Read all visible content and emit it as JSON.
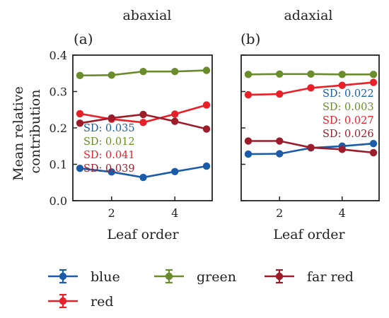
{
  "chart_data": [
    {
      "type": "line",
      "title": "abaxial",
      "panel_label": "(a)",
      "xlabel": "Leaf order",
      "ylabel": "Mean relative contribution",
      "xlim": [
        1,
        5
      ],
      "ylim": [
        0.0,
        0.4
      ],
      "xticks": [
        2,
        4
      ],
      "yticks": [
        0.0,
        0.1,
        0.2,
        0.3,
        0.4
      ],
      "ytick_labels": [
        "0.0",
        "0.1",
        "0.2",
        "0.3",
        "0.4"
      ],
      "x": [
        1,
        2,
        3,
        4,
        5
      ],
      "series": [
        {
          "name": "blue",
          "color": "#1a5ca8",
          "values": [
            0.089,
            0.079,
            0.064,
            0.08,
            0.095
          ],
          "sd": "SD: 0.035"
        },
        {
          "name": "green",
          "color": "#6a8c2a",
          "values": [
            0.344,
            0.345,
            0.355,
            0.355,
            0.358
          ],
          "sd": "SD: 0.012"
        },
        {
          "name": "red",
          "color": "#e8202a",
          "values": [
            0.239,
            0.224,
            0.215,
            0.238,
            0.263
          ],
          "sd": "SD: 0.041"
        },
        {
          "name": "far red",
          "color": "#9c1c2a",
          "values": [
            0.213,
            0.227,
            0.237,
            0.218,
            0.197
          ],
          "sd": "SD: 0.039"
        }
      ]
    },
    {
      "type": "line",
      "title": "adaxial",
      "panel_label": "(b)",
      "xlabel": "Leaf order",
      "xlim": [
        1,
        5
      ],
      "ylim": [
        0.0,
        0.4
      ],
      "xticks": [
        2,
        4
      ],
      "yticks": [
        0.0,
        0.1,
        0.2,
        0.3,
        0.4
      ],
      "ytick_labels": [],
      "x": [
        1,
        2,
        3,
        4,
        5
      ],
      "series": [
        {
          "name": "blue",
          "color": "#1a5ca8",
          "values": [
            0.128,
            0.129,
            0.145,
            0.15,
            0.157
          ],
          "sd": "SD: 0.022"
        },
        {
          "name": "green",
          "color": "#6a8c2a",
          "values": [
            0.347,
            0.348,
            0.348,
            0.347,
            0.347
          ],
          "sd": "SD: 0.003"
        },
        {
          "name": "red",
          "color": "#e8202a",
          "values": [
            0.291,
            0.293,
            0.31,
            0.317,
            0.325
          ],
          "sd": "SD: 0.027"
        },
        {
          "name": "far red",
          "color": "#9c1c2a",
          "values": [
            0.164,
            0.164,
            0.146,
            0.141,
            0.132
          ],
          "sd": "SD: 0.026"
        }
      ]
    }
  ],
  "legend": {
    "placement": "bottom",
    "items": [
      {
        "name": "blue",
        "color": "#1a5ca8"
      },
      {
        "name": "green",
        "color": "#6a8c2a"
      },
      {
        "name": "far red",
        "color": "#9c1c2a"
      },
      {
        "name": "red",
        "color": "#e8202a"
      }
    ]
  }
}
